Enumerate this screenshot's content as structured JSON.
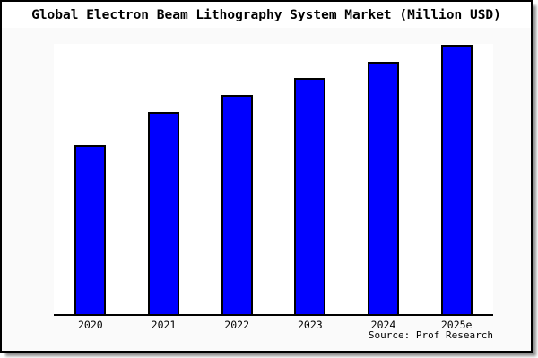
{
  "title": "Global Electron Beam Lithography System Market (Million USD)",
  "source": "Source: Prof Research",
  "colors": {
    "bar_fill": "#0000FF",
    "bar_border": "#000000",
    "figure_background": "#FAFAFA",
    "plot_background": "#FFFFFF",
    "axis_line": "#000000",
    "title_background": "#FFFFFF",
    "text": "#000000",
    "card_border": "#000000"
  },
  "chart_data": {
    "type": "bar",
    "title": "Global Electron Beam Lithography System Market (Million USD)",
    "categories": [
      "2020",
      "2021",
      "2022",
      "2023",
      "2024",
      "2025e"
    ],
    "values": [
      62.8,
      75.1,
      81.4,
      87.7,
      93.7,
      100
    ],
    "values_note": "Chart shows no y-axis scale, gridlines or data labels; values are measured bar heights expressed as percent of the tallest bar (2025e = 100).",
    "xlabel": "",
    "ylabel": "",
    "ylim": [
      0,
      100
    ],
    "grid": false,
    "legend": "none",
    "y_axis_labels": "none",
    "source_label": "Source: Prof Research"
  }
}
